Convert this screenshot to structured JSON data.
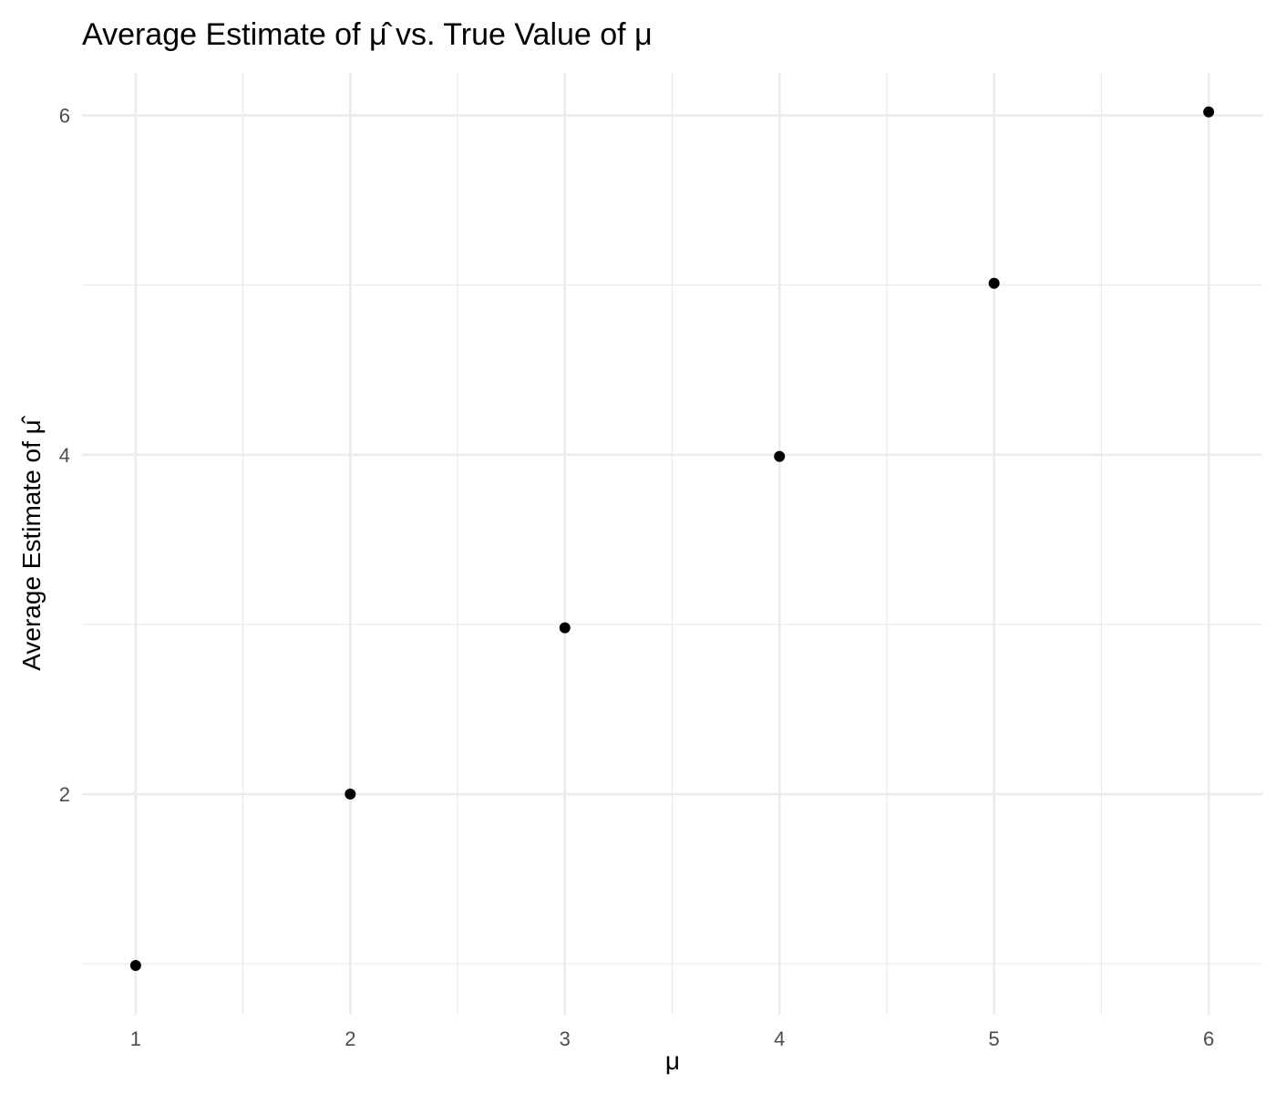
{
  "chart_data": {
    "type": "scatter",
    "title": "Average Estimate of μ̂ vs. True Value of μ",
    "xlabel": "μ",
    "ylabel": "Average Estimate of μ̂",
    "x": [
      1,
      2,
      3,
      4,
      5,
      6
    ],
    "y": [
      0.99,
      2.0,
      2.98,
      3.99,
      5.01,
      6.02
    ],
    "xlim": [
      0.75,
      6.25
    ],
    "ylim": [
      0.7,
      6.25
    ],
    "x_ticks": [
      1,
      2,
      3,
      4,
      5,
      6
    ],
    "y_ticks": [
      2,
      4,
      6
    ],
    "grid": true,
    "point_color": "#000000",
    "grid_color": "#ebebeb",
    "background": "#ffffff"
  }
}
